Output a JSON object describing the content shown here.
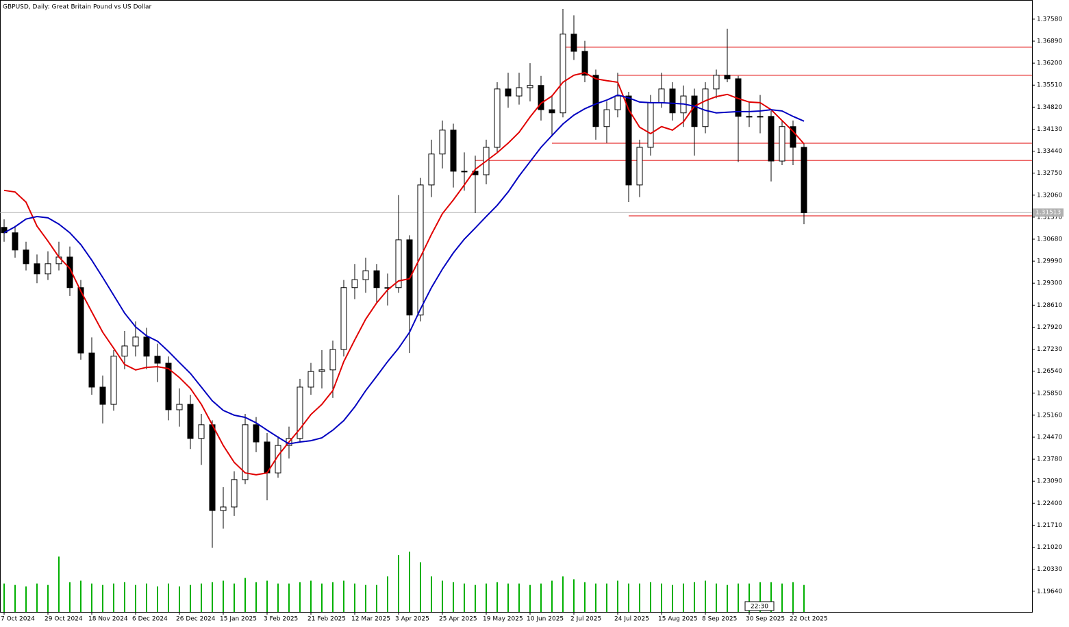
{
  "chart_data": {
    "type": "candlestick",
    "title": "GBPUSD, Daily:  Great Britain Pound vs US Dollar",
    "categories": [
      "7 Oct 2024",
      null,
      null,
      null,
      "29 Oct 2024",
      null,
      null,
      null,
      "18 Nov 2024",
      null,
      null,
      null,
      "6 Dec 2024",
      null,
      null,
      null,
      "26 Dec 2024",
      null,
      null,
      null,
      "15 Jan 2025",
      null,
      null,
      null,
      "3 Feb 2025",
      null,
      null,
      null,
      "21 Feb 2025",
      null,
      null,
      null,
      "12 Mar 2025",
      null,
      null,
      null,
      "3 Apr 2025",
      null,
      null,
      null,
      "25 Apr 2025",
      null,
      null,
      null,
      "19 May 2025",
      null,
      null,
      null,
      "10 Jun 2025",
      null,
      null,
      null,
      "2 Jul 2025",
      null,
      null,
      null,
      "24 Jul 2025",
      null,
      null,
      null,
      "15 Aug 2025",
      null,
      null,
      null,
      "8 Sep 2025",
      null,
      null,
      null,
      "30 Sep 2025",
      null,
      null,
      null,
      "22 Oct 2025",
      null
    ],
    "ohlc": [
      [
        1.3105,
        1.313,
        1.306,
        1.3088
      ],
      [
        1.3088,
        1.311,
        1.301,
        1.3034
      ],
      [
        1.3034,
        1.306,
        1.297,
        1.2991
      ],
      [
        1.2991,
        1.302,
        1.293,
        1.2959
      ],
      [
        1.2959,
        1.303,
        1.294,
        1.2991
      ],
      [
        1.2991,
        1.306,
        1.297,
        1.3012
      ],
      [
        1.3012,
        1.3045,
        1.289,
        1.2916
      ],
      [
        1.2916,
        1.294,
        1.269,
        1.2711
      ],
      [
        1.2711,
        1.276,
        1.258,
        1.2604
      ],
      [
        1.2604,
        1.264,
        1.249,
        1.255
      ],
      [
        1.255,
        1.272,
        1.253,
        1.2701
      ],
      [
        1.2701,
        1.278,
        1.266,
        1.2733
      ],
      [
        1.2733,
        1.281,
        1.27,
        1.2761
      ],
      [
        1.2761,
        1.279,
        1.266,
        1.2701
      ],
      [
        1.2701,
        1.274,
        1.262,
        1.2679
      ],
      [
        1.2679,
        1.27,
        1.25,
        1.2533
      ],
      [
        1.2533,
        1.26,
        1.248,
        1.255
      ],
      [
        1.255,
        1.258,
        1.241,
        1.2443
      ],
      [
        1.2443,
        1.252,
        1.236,
        1.2486
      ],
      [
        1.2486,
        1.25,
        1.21,
        1.2217
      ],
      [
        1.2217,
        1.229,
        1.216,
        1.2228
      ],
      [
        1.2228,
        1.234,
        1.22,
        1.2314
      ],
      [
        1.2314,
        1.252,
        1.23,
        1.2486
      ],
      [
        1.2486,
        1.251,
        1.24,
        1.2432
      ],
      [
        1.2432,
        1.246,
        1.2249,
        1.2335
      ],
      [
        1.2335,
        1.245,
        1.232,
        1.2421
      ],
      [
        1.2421,
        1.248,
        1.238,
        1.2443
      ],
      [
        1.2443,
        1.263,
        1.243,
        1.2604
      ],
      [
        1.2604,
        1.268,
        1.258,
        1.2653
      ],
      [
        1.2653,
        1.272,
        1.26,
        1.2658
      ],
      [
        1.2658,
        1.275,
        1.257,
        1.2722
      ],
      [
        1.2722,
        1.294,
        1.27,
        1.2916
      ],
      [
        1.2916,
        1.299,
        1.288,
        1.2941
      ],
      [
        1.2941,
        1.301,
        1.29,
        1.2969
      ],
      [
        1.2969,
        1.299,
        1.287,
        1.2916
      ],
      [
        1.2916,
        1.296,
        1.286,
        1.2916
      ],
      [
        1.2916,
        1.3206,
        1.29,
        1.3066
      ],
      [
        1.3066,
        1.308,
        1.2711,
        1.283
      ],
      [
        1.283,
        1.326,
        1.281,
        1.3238
      ],
      [
        1.3238,
        1.338,
        1.32,
        1.3335
      ],
      [
        1.3335,
        1.344,
        1.329,
        1.341
      ],
      [
        1.341,
        1.343,
        1.323,
        1.3281
      ],
      [
        1.3281,
        1.334,
        1.322,
        1.3281
      ],
      [
        1.3281,
        1.333,
        1.315,
        1.327
      ],
      [
        1.327,
        1.338,
        1.324,
        1.3356
      ],
      [
        1.3356,
        1.356,
        1.334,
        1.3539
      ],
      [
        1.3539,
        1.359,
        1.348,
        1.3517
      ],
      [
        1.3517,
        1.359,
        1.349,
        1.3543
      ],
      [
        1.3543,
        1.362,
        1.35,
        1.355
      ],
      [
        1.355,
        1.358,
        1.344,
        1.3474
      ],
      [
        1.3474,
        1.352,
        1.339,
        1.3464
      ],
      [
        1.3464,
        1.379,
        1.345,
        1.3711
      ],
      [
        1.3711,
        1.377,
        1.363,
        1.3657
      ],
      [
        1.3657,
        1.369,
        1.356,
        1.3582
      ],
      [
        1.3582,
        1.36,
        1.338,
        1.3421
      ],
      [
        1.3421,
        1.35,
        1.337,
        1.3474
      ],
      [
        1.3474,
        1.359,
        1.345,
        1.3517
      ],
      [
        1.3517,
        1.353,
        1.3184,
        1.3238
      ],
      [
        1.3238,
        1.338,
        1.32,
        1.3356
      ],
      [
        1.3356,
        1.352,
        1.333,
        1.3496
      ],
      [
        1.3496,
        1.359,
        1.348,
        1.3539
      ],
      [
        1.3539,
        1.356,
        1.344,
        1.3464
      ],
      [
        1.3464,
        1.355,
        1.342,
        1.3517
      ],
      [
        1.3517,
        1.354,
        1.333,
        1.3421
      ],
      [
        1.3421,
        1.356,
        1.34,
        1.3539
      ],
      [
        1.3539,
        1.36,
        1.351,
        1.3582
      ],
      [
        1.3582,
        1.3728,
        1.356,
        1.3571
      ],
      [
        1.3571,
        1.358,
        1.331,
        1.3453
      ],
      [
        1.3453,
        1.35,
        1.342,
        1.3453
      ],
      [
        1.3453,
        1.352,
        1.34,
        1.3453
      ],
      [
        1.3453,
        1.347,
        1.3249,
        1.3313
      ],
      [
        1.3313,
        1.344,
        1.33,
        1.3421
      ],
      [
        1.3421,
        1.344,
        1.33,
        1.3356
      ],
      [
        1.3356,
        1.337,
        1.3115,
        1.3151
      ]
    ],
    "up_color": "#ffffff",
    "down_color": "#000000",
    "outline_color": "#000000",
    "moving_averages": [
      {
        "color": "#e00000",
        "values": [
          1.3221,
          1.3216,
          1.3184,
          1.3109,
          1.3062,
          1.3012,
          1.2976,
          1.2905,
          1.284,
          1.2776,
          1.2726,
          1.2675,
          1.2658,
          1.2666,
          1.2668,
          1.2662,
          1.2634,
          1.26,
          1.255,
          1.2486,
          1.2421,
          1.2368,
          1.2335,
          1.2329,
          1.2335,
          1.2389,
          1.2432,
          1.2473,
          1.2518,
          1.255,
          1.2593,
          1.2684,
          1.2752,
          1.2817,
          1.2868,
          1.2909,
          1.2937,
          1.2944,
          1.3012,
          1.3083,
          1.3148,
          1.3191,
          1.3238,
          1.3287,
          1.3313,
          1.3339,
          1.3369,
          1.3403,
          1.3451,
          1.3494,
          1.3517,
          1.356,
          1.3582,
          1.359,
          1.3571,
          1.3565,
          1.356,
          1.3474,
          1.3419,
          1.3399,
          1.3421,
          1.341,
          1.3436,
          1.3485,
          1.3502,
          1.3515,
          1.3522,
          1.3509,
          1.3498,
          1.3496,
          1.3474,
          1.344,
          1.3406,
          1.3367
        ]
      },
      {
        "color": "#0000c0",
        "values": [
          1.3088,
          1.3107,
          1.3131,
          1.3139,
          1.3135,
          1.3115,
          1.3088,
          1.3051,
          1.3002,
          1.2948,
          1.2892,
          1.2836,
          1.2793,
          1.2765,
          1.2748,
          1.2716,
          1.2681,
          1.2647,
          1.2604,
          1.2561,
          1.2531,
          1.2516,
          1.2509,
          1.2492,
          1.2469,
          1.2447,
          1.2426,
          1.2432,
          1.2436,
          1.2445,
          1.2469,
          1.2499,
          1.2542,
          1.2593,
          1.2638,
          1.2684,
          1.2726,
          1.2776,
          1.2849,
          1.2916,
          1.2974,
          1.3025,
          1.3068,
          1.3103,
          1.3139,
          1.3174,
          1.3216,
          1.3266,
          1.3311,
          1.3356,
          1.3393,
          1.3429,
          1.3457,
          1.3477,
          1.3492,
          1.3504,
          1.352,
          1.3511,
          1.3498,
          1.3496,
          1.3496,
          1.3494,
          1.3492,
          1.3485,
          1.3472,
          1.3464,
          1.3466,
          1.3468,
          1.3468,
          1.347,
          1.3474,
          1.347,
          1.3453,
          1.3438
        ]
      }
    ],
    "volume": {
      "color": "#00b000",
      "values": [
        40,
        38,
        36,
        40,
        38,
        78,
        42,
        44,
        40,
        38,
        40,
        42,
        38,
        40,
        36,
        40,
        36,
        38,
        40,
        42,
        44,
        40,
        48,
        42,
        44,
        40,
        40,
        42,
        44,
        40,
        42,
        44,
        40,
        38,
        38,
        50,
        80,
        85,
        70,
        50,
        44,
        42,
        40,
        38,
        40,
        42,
        40,
        40,
        38,
        40,
        44,
        50,
        46,
        42,
        40,
        40,
        44,
        40,
        40,
        42,
        40,
        38,
        40,
        42,
        44,
        40,
        38,
        40,
        40,
        42,
        42,
        40,
        42,
        38
      ]
    },
    "levels": {
      "color": "#e00000",
      "lines": [
        {
          "value": 1.367,
          "start": 51
        },
        {
          "value": 1.3582,
          "start": 56
        },
        {
          "value": 1.3369,
          "start": 50
        },
        {
          "value": 1.3315,
          "start": 43
        },
        {
          "value": 1.3141,
          "start": 57
        }
      ]
    },
    "last_price": {
      "value": 1.31513,
      "label": "1.31513"
    },
    "timer": "22:30",
    "ylim": [
      1.1899,
      1.3818
    ],
    "yticks": [
      {
        "value": 1.3758,
        "label": "1.37580"
      },
      {
        "value": 1.3689,
        "label": "1.36890"
      },
      {
        "value": 1.362,
        "label": "1.36200"
      },
      {
        "value": 1.3551,
        "label": "1.35510"
      },
      {
        "value": 1.3482,
        "label": "1.34820"
      },
      {
        "value": 1.3413,
        "label": "1.34130"
      },
      {
        "value": 1.3344,
        "label": "1.33440"
      },
      {
        "value": 1.3275,
        "label": "1.32750"
      },
      {
        "value": 1.3206,
        "label": "1.32060"
      },
      {
        "value": 1.3137,
        "label": "1.31370"
      },
      {
        "value": 1.3068,
        "label": "1.30680"
      },
      {
        "value": 1.2999,
        "label": "1.29990"
      },
      {
        "value": 1.293,
        "label": "1.29300"
      },
      {
        "value": 1.2861,
        "label": "1.28610"
      },
      {
        "value": 1.2792,
        "label": "1.27920"
      },
      {
        "value": 1.2723,
        "label": "1.27230"
      },
      {
        "value": 1.2654,
        "label": "1.26540"
      },
      {
        "value": 1.2585,
        "label": "1.25850"
      },
      {
        "value": 1.2516,
        "label": "1.25160"
      },
      {
        "value": 1.2447,
        "label": "1.24470"
      },
      {
        "value": 1.2378,
        "label": "1.23780"
      },
      {
        "value": 1.2309,
        "label": "1.23090"
      },
      {
        "value": 1.224,
        "label": "1.22400"
      },
      {
        "value": 1.2171,
        "label": "1.21710"
      },
      {
        "value": 1.2102,
        "label": "1.21020"
      },
      {
        "value": 1.2033,
        "label": "1.20330"
      },
      {
        "value": 1.1964,
        "label": "1.19640"
      }
    ],
    "grid": false
  }
}
